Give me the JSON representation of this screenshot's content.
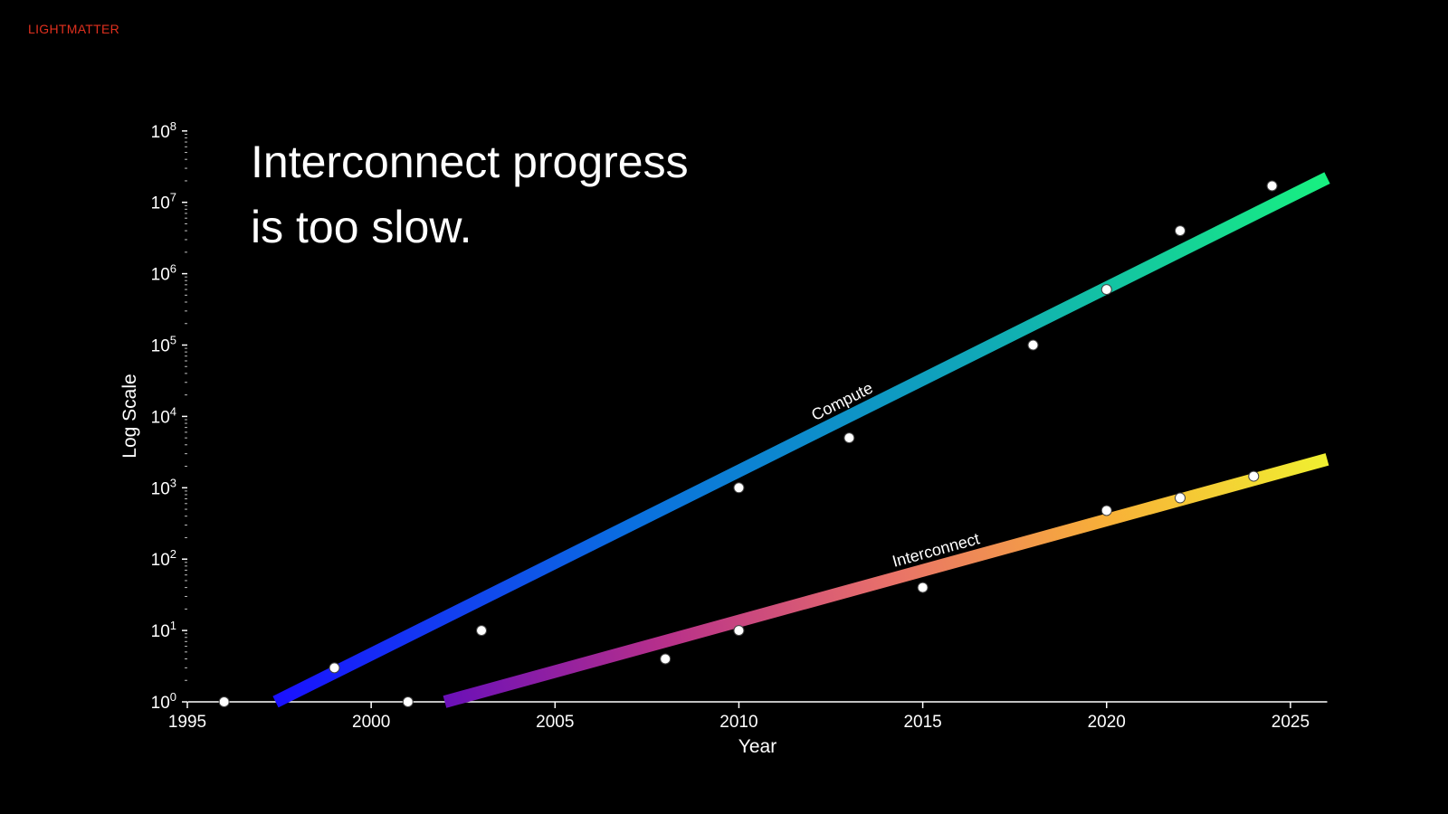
{
  "brand": {
    "logo_text": "LIGHTMATTER"
  },
  "chart_data": {
    "type": "line",
    "title_lines": [
      "Interconnect progress",
      "is too slow."
    ],
    "xlabel": "Year",
    "ylabel": "Log Scale",
    "yscale": "log",
    "xlim": [
      1995,
      2026
    ],
    "ylim": [
      1,
      100000000
    ],
    "x_ticks": [
      1995,
      2000,
      2005,
      2010,
      2015,
      2020,
      2025
    ],
    "y_ticks": [
      {
        "exp": 0,
        "base": "10",
        "sup": "0"
      },
      {
        "exp": 1,
        "base": "10",
        "sup": "1"
      },
      {
        "exp": 2,
        "base": "10",
        "sup": "2"
      },
      {
        "exp": 3,
        "base": "10",
        "sup": "3"
      },
      {
        "exp": 4,
        "base": "10",
        "sup": "4"
      },
      {
        "exp": 5,
        "base": "10",
        "sup": "5"
      },
      {
        "exp": 6,
        "base": "10",
        "sup": "6"
      },
      {
        "exp": 7,
        "base": "10",
        "sup": "7"
      },
      {
        "exp": 8,
        "base": "10",
        "sup": "8"
      }
    ],
    "grid": false,
    "series": [
      {
        "name": "Compute",
        "points": [
          [
            1996,
            1
          ],
          [
            1999,
            3
          ],
          [
            2003,
            10
          ],
          [
            2010,
            1000
          ],
          [
            2013,
            5000
          ],
          [
            2018,
            100000
          ],
          [
            2020,
            600000
          ],
          [
            2022,
            4000000
          ],
          [
            2024.5,
            17000000
          ]
        ],
        "trend": [
          [
            1997.4,
            1
          ],
          [
            2026,
            22000000
          ]
        ],
        "gradient": [
          "#1a10ff",
          "#0a6ee0",
          "#10a8b8",
          "#18f080"
        ],
        "label_year": 2012.2
      },
      {
        "name": "Interconnect",
        "points": [
          [
            2001,
            1
          ],
          [
            2008,
            4
          ],
          [
            2010,
            10
          ],
          [
            2015,
            40
          ],
          [
            2020,
            480
          ],
          [
            2022,
            720
          ],
          [
            2024,
            1450
          ]
        ],
        "trend": [
          [
            2002,
            1
          ],
          [
            2026,
            2500
          ]
        ],
        "gradient": [
          "#6a10b8",
          "#b8308a",
          "#e8706a",
          "#f8b038",
          "#f0f030"
        ],
        "label_year": 2014.3
      }
    ]
  }
}
